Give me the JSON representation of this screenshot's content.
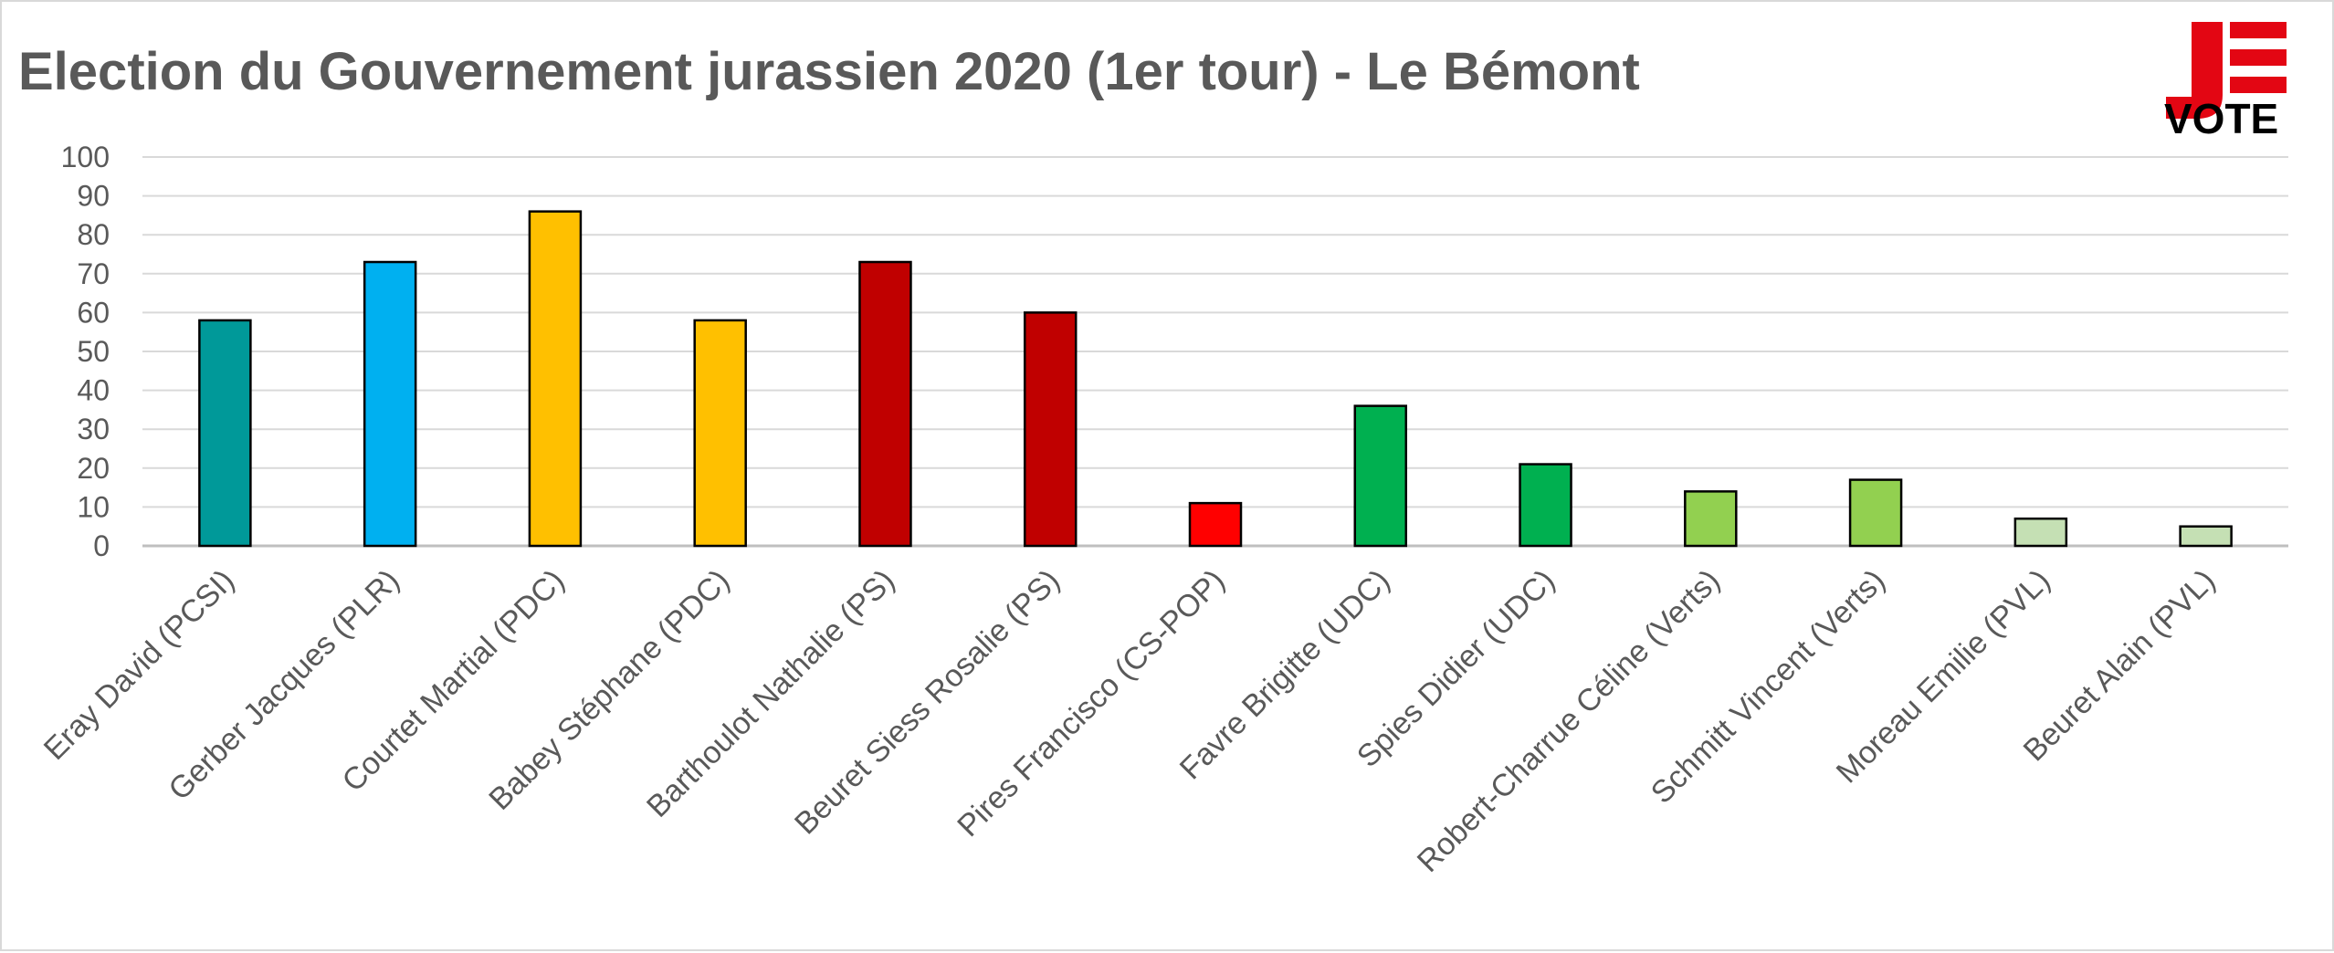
{
  "chart_data": {
    "type": "bar",
    "title": "Election du Gouvernement jurassien 2020 (1er tour) - Le Bémont",
    "xlabel": "",
    "ylabel": "",
    "ylim": [
      0,
      100
    ],
    "yticks": [
      0,
      10,
      20,
      30,
      40,
      50,
      60,
      70,
      80,
      90,
      100
    ],
    "grid": true,
    "legend": "none",
    "categories": [
      "Eray David (PCSI)",
      "Gerber Jacques (PLR)",
      "Courtet Martial (PDC)",
      "Babey Stéphane (PDC)",
      "Barthoulot Nathalie (PS)",
      "Beuret Siess Rosalie (PS)",
      "Pires Francisco (CS-POP)",
      "Favre Brigitte (UDC)",
      "Spies Didier (UDC)",
      "Robert-Charrue Céline (Verts)",
      "Schmitt Vincent (Verts)",
      "Moreau Emilie (PVL)",
      "Beuret Alain (PVL)"
    ],
    "values": [
      58,
      73,
      86,
      58,
      73,
      60,
      11,
      36,
      21,
      14,
      17,
      7,
      5
    ],
    "colors": [
      "#009999",
      "#00b0f0",
      "#ffc000",
      "#ffc000",
      "#c00000",
      "#c00000",
      "#ff0000",
      "#00b050",
      "#00b050",
      "#92d050",
      "#92d050",
      "#c5e0b4",
      "#c5e0b4"
    ]
  },
  "logo": {
    "name": "je-vote-logo",
    "letter": "J",
    "word": "VOTE",
    "color_red": "#e30613",
    "color_black": "#000000"
  }
}
